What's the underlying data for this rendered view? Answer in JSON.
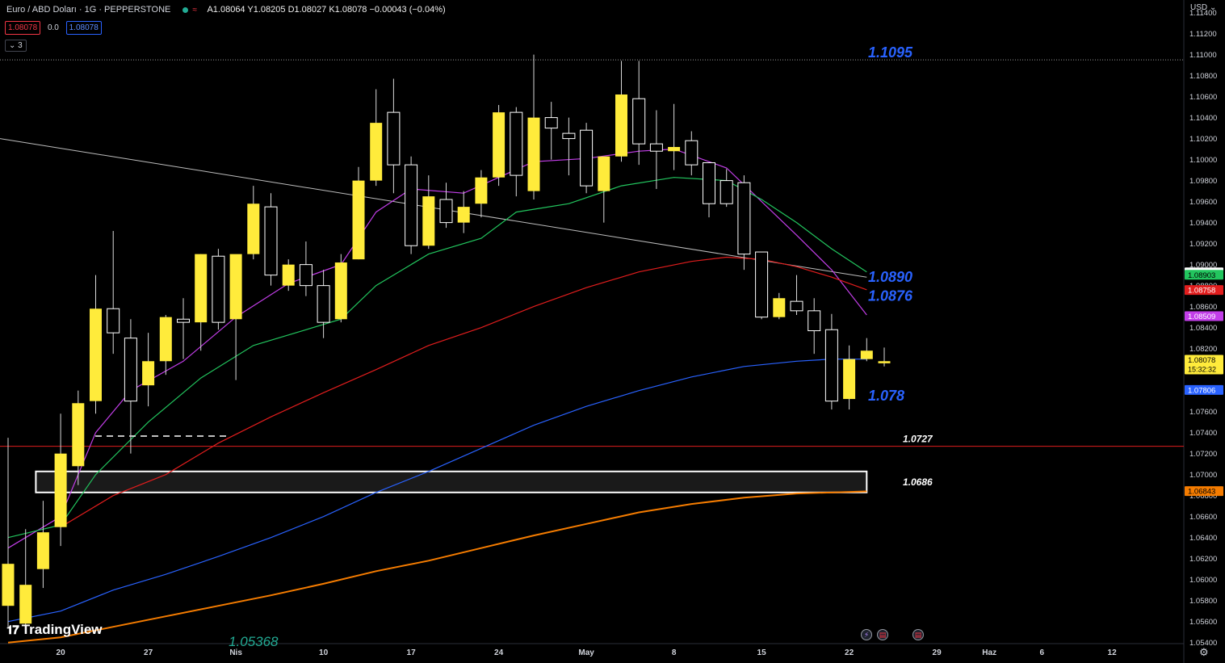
{
  "header": {
    "symbol": "Euro / ABD Doları · 1G · PEPPERSTONE",
    "ohlc": "A1.08064 Y1.08205 D1.08027 K1.08078 −0.00043 (−0.04%)"
  },
  "badges": {
    "bid": "1.08078",
    "spread": "0.0",
    "ask": "1.08078"
  },
  "indicators_toggle": "3",
  "currency": "USD",
  "logo_text": "TradingView",
  "colors": {
    "bull": "#ffeb3b",
    "bear_outline": "#ffffff",
    "wick": "#d9d9d9",
    "ema_purple": "#c23ee8",
    "ema_green": "#22c55e",
    "ema_red": "#e11d1d",
    "ema_blue": "#2962ff",
    "ema_orange": "#f57c00",
    "label_blue": "#2962ff",
    "support_red": "#e01e1e"
  },
  "chart_data": {
    "type": "candlestick",
    "symbol": "EURUSD",
    "timeframe": "1G",
    "y_ticks": [
      "1.11400",
      "1.11200",
      "1.11000",
      "1.10800",
      "1.10600",
      "1.10400",
      "1.10200",
      "1.10000",
      "1.09800",
      "1.09600",
      "1.09400",
      "1.09200",
      "1.09000",
      "1.08800",
      "1.08600",
      "1.08400",
      "1.08200",
      "1.08000",
      "1.07800",
      "1.07600",
      "1.07400",
      "1.07200",
      "1.07000",
      "1.06800",
      "1.06600",
      "1.06400",
      "1.06200",
      "1.06000",
      "1.05800",
      "1.05600",
      "1.05400"
    ],
    "x_ticks": [
      {
        "label": "20",
        "i": 3
      },
      {
        "label": "27",
        "i": 8
      },
      {
        "label": "Nis",
        "i": 13
      },
      {
        "label": "10",
        "i": 18
      },
      {
        "label": "17",
        "i": 23
      },
      {
        "label": "24",
        "i": 28
      },
      {
        "label": "May",
        "i": 33
      },
      {
        "label": "8",
        "i": 38
      },
      {
        "label": "15",
        "i": 43
      },
      {
        "label": "22",
        "i": 48
      },
      {
        "label": "29",
        "i": 53
      },
      {
        "label": "Haz",
        "i": 56
      },
      {
        "label": "6",
        "i": 59
      },
      {
        "label": "12",
        "i": 63
      }
    ],
    "ylim": [
      1.0539,
      1.1152
    ],
    "candles": [
      [
        1.0575,
        1.0735,
        1.0615,
        1.0555
      ],
      [
        1.0558,
        1.0648,
        1.0595,
        1.0555
      ],
      [
        1.061,
        1.0675,
        1.0645,
        1.0592
      ],
      [
        1.065,
        1.0758,
        1.072,
        1.0632
      ],
      [
        1.0708,
        1.078,
        1.0768,
        1.069
      ],
      [
        1.077,
        1.089,
        1.0858,
        1.0758
      ],
      [
        1.0858,
        1.0932,
        1.0835,
        1.0815
      ],
      [
        1.083,
        1.0848,
        1.077,
        1.072
      ],
      [
        1.0785,
        1.0835,
        1.0808,
        1.0765
      ],
      [
        1.0808,
        1.0852,
        1.085,
        1.0795
      ],
      [
        1.0848,
        1.0868,
        1.0845,
        1.081
      ],
      [
        1.0845,
        1.091,
        1.091,
        1.0818
      ],
      [
        1.0908,
        1.0915,
        1.0845,
        1.0838
      ],
      [
        1.0848,
        1.0905,
        1.091,
        1.079
      ],
      [
        1.091,
        1.0975,
        1.0958,
        1.0905
      ],
      [
        1.0955,
        1.0968,
        1.089,
        1.088
      ],
      [
        1.088,
        1.0905,
        1.09,
        1.0875
      ],
      [
        1.09,
        1.0922,
        1.088,
        1.087
      ],
      [
        1.088,
        1.0895,
        1.0845,
        1.083
      ],
      [
        1.0848,
        1.091,
        1.0902,
        1.0845
      ],
      [
        1.0905,
        1.0993,
        1.098,
        1.0905
      ],
      [
        1.098,
        1.1067,
        1.1035,
        1.0975
      ],
      [
        1.1045,
        1.1077,
        1.0995,
        1.0968
      ],
      [
        1.0995,
        1.1003,
        1.0918,
        1.091
      ],
      [
        1.0918,
        1.0985,
        1.0965,
        1.0915
      ],
      [
        1.0962,
        1.0978,
        1.094,
        1.0935
      ],
      [
        1.094,
        1.097,
        1.0955,
        1.093
      ],
      [
        1.0958,
        1.099,
        1.0983,
        1.0945
      ],
      [
        1.0983,
        1.1052,
        1.1045,
        1.0975
      ],
      [
        1.1045,
        1.105,
        1.0985,
        1.0965
      ],
      [
        1.097,
        1.11,
        1.104,
        1.0962
      ],
      [
        1.104,
        1.1055,
        1.103,
        1.1
      ],
      [
        1.1025,
        1.104,
        1.102,
        1.0985
      ],
      [
        1.1028,
        1.1035,
        1.0975,
        1.0968
      ],
      [
        1.097,
        1.1,
        1.1003,
        1.094
      ],
      [
        1.1003,
        1.1094,
        1.1062,
        1.0998
      ],
      [
        1.1058,
        1.1094,
        1.1015,
        1.0995
      ],
      [
        1.1015,
        1.1047,
        1.1008,
        1.0972
      ],
      [
        1.1008,
        1.1053,
        1.1012,
        1.099
      ],
      [
        1.1018,
        1.1027,
        1.0995,
        1.0985
      ],
      [
        1.0997,
        1.0992,
        1.0958,
        1.0945
      ],
      [
        1.098,
        1.0991,
        1.0958,
        1.0955
      ],
      [
        1.0978,
        1.0985,
        1.091,
        1.0895
      ],
      [
        1.0912,
        1.091,
        1.085,
        1.0848
      ],
      [
        1.085,
        1.0873,
        1.0868,
        1.0848
      ],
      [
        1.0865,
        1.089,
        1.0856,
        1.0852
      ],
      [
        1.0856,
        1.0868,
        1.0837,
        1.0815
      ],
      [
        1.0838,
        1.0853,
        1.077,
        1.0762
      ],
      [
        1.0772,
        1.0823,
        1.081,
        1.0762
      ],
      [
        1.081,
        1.083,
        1.0818,
        1.0808
      ],
      [
        1.0806,
        1.0821,
        1.0808,
        1.0803
      ]
    ],
    "moving_averages": [
      {
        "color_key": "ema_purple",
        "points": [
          [
            0,
            1.063
          ],
          [
            3,
            1.066
          ],
          [
            5,
            1.074
          ],
          [
            7,
            1.078
          ],
          [
            10,
            1.0808
          ],
          [
            13,
            1.085
          ],
          [
            16,
            1.0882
          ],
          [
            19,
            1.09
          ],
          [
            21,
            1.095
          ],
          [
            23,
            1.0972
          ],
          [
            26,
            1.0968
          ],
          [
            28,
            1.0983
          ],
          [
            30,
            1.0998
          ],
          [
            33,
            1.1001
          ],
          [
            36,
            1.1008
          ],
          [
            38,
            1.101
          ],
          [
            41,
            1.0992
          ],
          [
            43,
            1.096
          ],
          [
            45,
            1.0928
          ],
          [
            47,
            1.0895
          ],
          [
            49,
            1.0852
          ]
        ]
      },
      {
        "color_key": "ema_green",
        "points": [
          [
            0,
            1.064
          ],
          [
            3,
            1.0652
          ],
          [
            5,
            1.07
          ],
          [
            8,
            1.075
          ],
          [
            11,
            1.0792
          ],
          [
            14,
            1.0823
          ],
          [
            17,
            1.0838
          ],
          [
            19,
            1.0848
          ],
          [
            21,
            1.088
          ],
          [
            24,
            1.091
          ],
          [
            27,
            1.0925
          ],
          [
            29,
            1.095
          ],
          [
            32,
            1.0958
          ],
          [
            35,
            1.0975
          ],
          [
            38,
            1.0983
          ],
          [
            41,
            1.098
          ],
          [
            43,
            1.0962
          ],
          [
            45,
            1.094
          ],
          [
            47,
            1.0915
          ],
          [
            49,
            1.0893
          ]
        ]
      },
      {
        "color_key": "ema_red",
        "points": [
          [
            3,
            1.065
          ],
          [
            6,
            1.068
          ],
          [
            9,
            1.07
          ],
          [
            12,
            1.073
          ],
          [
            15,
            1.0755
          ],
          [
            18,
            1.0778
          ],
          [
            21,
            1.08
          ],
          [
            24,
            1.0823
          ],
          [
            27,
            1.084
          ],
          [
            30,
            1.086
          ],
          [
            33,
            1.0878
          ],
          [
            36,
            1.0893
          ],
          [
            39,
            1.0903
          ],
          [
            41,
            1.0907
          ],
          [
            43,
            1.0905
          ],
          [
            45,
            1.0898
          ],
          [
            47,
            1.0888
          ],
          [
            49,
            1.0876
          ]
        ]
      },
      {
        "color_key": "ema_blue",
        "points": [
          [
            0,
            1.056
          ],
          [
            3,
            1.057
          ],
          [
            6,
            1.059
          ],
          [
            9,
            1.0605
          ],
          [
            12,
            1.0622
          ],
          [
            15,
            1.064
          ],
          [
            18,
            1.066
          ],
          [
            21,
            1.0683
          ],
          [
            24,
            1.0703
          ],
          [
            27,
            1.0725
          ],
          [
            30,
            1.0747
          ],
          [
            33,
            1.0765
          ],
          [
            36,
            1.078
          ],
          [
            39,
            1.0793
          ],
          [
            42,
            1.0803
          ],
          [
            45,
            1.0808
          ],
          [
            47,
            1.081
          ],
          [
            49,
            1.081
          ]
        ]
      },
      {
        "color_key": "ema_orange",
        "points": [
          [
            0,
            1.054
          ],
          [
            3,
            1.0545
          ],
          [
            6,
            1.0555
          ],
          [
            9,
            1.0565
          ],
          [
            12,
            1.0575
          ],
          [
            15,
            1.0585
          ],
          [
            18,
            1.0596
          ],
          [
            21,
            1.0608
          ],
          [
            24,
            1.0618
          ],
          [
            27,
            1.063
          ],
          [
            30,
            1.0642
          ],
          [
            33,
            1.0653
          ],
          [
            36,
            1.0664
          ],
          [
            39,
            1.0672
          ],
          [
            42,
            1.0678
          ],
          [
            45,
            1.0682
          ],
          [
            49,
            1.0684
          ]
        ]
      }
    ],
    "trendline": {
      "from": [
        0,
        1.102
      ],
      "to": [
        49,
        1.0888
      ]
    },
    "resistance_1095": {
      "price": 1.1095,
      "label": "1.1095"
    },
    "support_727": {
      "price": 1.0727,
      "label": "1.0727"
    },
    "zone": {
      "i_from": 2,
      "i_to": 49,
      "low": 1.0683,
      "high": 1.0703,
      "label": "1.0686"
    },
    "price_labels": [
      {
        "text": "1.0890",
        "price": 1.0888
      },
      {
        "text": "1.0876",
        "price": 1.087
      },
      {
        "text": "1.078",
        "price": 1.0775
      }
    ],
    "bottom_label": {
      "text": "1.05368",
      "price": 1.054,
      "i": 14
    },
    "axis_tags": [
      {
        "text": "1.08926",
        "price": 1.08926,
        "bg": "#ffffff",
        "fg": "#000000"
      },
      {
        "text": "1.08903",
        "price": 1.08903,
        "bg": "#22c55e",
        "fg": "#000000"
      },
      {
        "text": "1.08758",
        "price": 1.08758,
        "bg": "#e11d1d",
        "fg": "#ffffff"
      },
      {
        "text": "1.08509",
        "price": 1.08509,
        "bg": "#c23ee8",
        "fg": "#ffffff"
      },
      {
        "text": "1.08078",
        "price": 1.08078,
        "bg": "#ffeb3b",
        "fg": "#000000"
      },
      {
        "text": "1.07806",
        "price": 1.07806,
        "bg": "#2962ff",
        "fg": "#ffffff"
      },
      {
        "text": "1.06843",
        "price": 1.06843,
        "bg": "#f57c00",
        "fg": "#000000"
      }
    ],
    "countdown": "15:32:32"
  }
}
